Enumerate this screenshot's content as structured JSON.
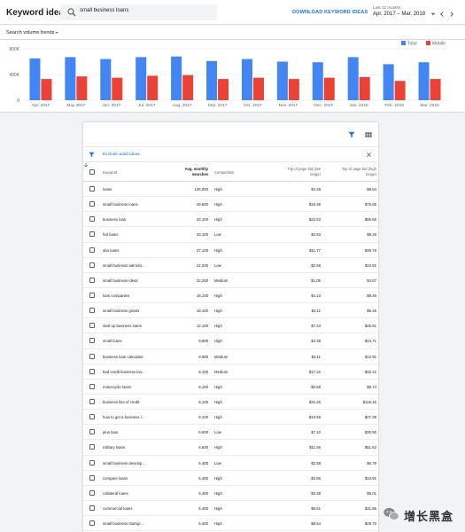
{
  "app": {
    "title": "Keyword ideas"
  },
  "search": {
    "value": "small business loans",
    "icon": "search-icon"
  },
  "header": {
    "download_label": "DOWNLOAD KEYWORD IDEAS",
    "date_caption": "Last 12 months",
    "date_range": "Apr. 2017 – Mar. 2018"
  },
  "trends": {
    "selector_label": "Search volume trends"
  },
  "chart_data": {
    "type": "bar",
    "categories": [
      "Apr. 2017",
      "May 2017",
      "Jun. 2017",
      "Jul. 2017",
      "Aug. 2017",
      "Sep. 2017",
      "Oct. 2017",
      "Nov. 2017",
      "Dec. 2017",
      "Jan. 2018",
      "Feb. 2018",
      "Mar. 2018"
    ],
    "series": [
      {
        "name": "Total",
        "color": "#4285f4",
        "values": [
          650000,
          670000,
          640000,
          670000,
          680000,
          610000,
          640000,
          600000,
          590000,
          670000,
          560000,
          590000
        ]
      },
      {
        "name": "Mobile",
        "color": "#ea4335",
        "values": [
          330000,
          370000,
          350000,
          380000,
          390000,
          330000,
          350000,
          330000,
          350000,
          360000,
          300000,
          330000
        ]
      }
    ],
    "yticks": [
      "0",
      "400K",
      "800K"
    ],
    "ylim": [
      0,
      800000
    ],
    "grid": true,
    "legend": "top-right"
  },
  "toolbar": {
    "filter_icon": "filter-icon",
    "columns_icon": "columns-icon"
  },
  "filter": {
    "chip_label": "Exclude adult ideas"
  },
  "table": {
    "columns": {
      "keyword": "Keyword",
      "volume_line1": "Avg. monthly",
      "volume_line2": "searches",
      "competition": "Competition",
      "bid_low_line1": "Top of page bid (low",
      "bid_low_line2": "range)",
      "bid_high_line1": "Top of page bid (high",
      "bid_high_line2": "range)"
    },
    "rows": [
      {
        "keyword": "loans",
        "volume": "135,000",
        "competition": "High",
        "bid_low": "$4.28",
        "bid_high": "$8.54"
      },
      {
        "keyword": "small business loans",
        "volume": "49,500",
        "competition": "High",
        "bid_low": "$19.36",
        "bid_high": "$75.65"
      },
      {
        "keyword": "business loan",
        "volume": "33,100",
        "competition": "High",
        "bid_low": "$22.53",
        "bid_high": "$80.68"
      },
      {
        "keyword": "fed loans",
        "volume": "33,100",
        "competition": "Low",
        "bid_low": "$2.83",
        "bid_high": "$9.28"
      },
      {
        "keyword": "sba loans",
        "volume": "27,100",
        "competition": "High",
        "bid_low": "$11.77",
        "bid_high": "$35.78"
      },
      {
        "keyword": "small business adminis...",
        "volume": "22,200",
        "competition": "Low",
        "bid_low": "$2.58",
        "bid_high": "$10.91"
      },
      {
        "keyword": "small business ideas",
        "volume": "22,200",
        "competition": "Medium",
        "bid_low": "$1.05",
        "bid_high": "$4.87"
      },
      {
        "keyword": "loan companies",
        "volume": "18,100",
        "competition": "High",
        "bid_low": "$4.10",
        "bid_high": "$9.49"
      },
      {
        "keyword": "small business grants",
        "volume": "18,100",
        "competition": "High",
        "bid_low": "$3.11",
        "bid_high": "$6.45"
      },
      {
        "keyword": "start up business loans",
        "volume": "12,100",
        "competition": "High",
        "bid_low": "$7.43",
        "bid_high": "$25.81"
      },
      {
        "keyword": "small loans",
        "volume": "9,900",
        "competition": "High",
        "bid_low": "$4.38",
        "bid_high": "$10.71"
      },
      {
        "keyword": "business loan calculator",
        "volume": "9,900",
        "competition": "Medium",
        "bid_low": "$3.11",
        "bid_high": "$12.91"
      },
      {
        "keyword": "bad credit business loa...",
        "volume": "8,100",
        "competition": "Medium",
        "bid_low": "$17.22",
        "bid_high": "$32.42"
      },
      {
        "keyword": "motorcycle loans",
        "volume": "8,100",
        "competition": "High",
        "bid_low": "$2.58",
        "bid_high": "$8.74"
      },
      {
        "keyword": "business line of credit",
        "volume": "8,100",
        "competition": "High",
        "bid_low": "$32.26",
        "bid_high": "$116.15"
      },
      {
        "keyword": "how to get a business l...",
        "volume": "8,100",
        "competition": "High",
        "bid_low": "$10.69",
        "bid_high": "$27.39"
      },
      {
        "keyword": "plus loan",
        "volume": "6,600",
        "competition": "Low",
        "bid_low": "$7.10",
        "bid_high": "$30.90"
      },
      {
        "keyword": "military loans",
        "volume": "6,600",
        "competition": "High",
        "bid_low": "$11.56",
        "bid_high": "$51.62"
      },
      {
        "keyword": "small business develop...",
        "volume": "5,400",
        "competition": "Low",
        "bid_low": "$2.58",
        "bid_high": "$6.79"
      },
      {
        "keyword": "compare loans",
        "volume": "5,400",
        "competition": "High",
        "bid_low": "$3.86",
        "bid_high": "$10.91"
      },
      {
        "keyword": "collateral loans",
        "volume": "5,400",
        "competition": "High",
        "bid_low": "$3.39",
        "bid_high": "$9.01"
      },
      {
        "keyword": "commercial loans",
        "volume": "5,400",
        "competition": "High",
        "bid_low": "$8.61",
        "bid_high": "$31.85"
      },
      {
        "keyword": "small business startup ...",
        "volume": "5,400",
        "competition": "High",
        "bid_low": "$8.54",
        "bid_high": "$29.70"
      }
    ]
  },
  "watermark": {
    "text": "增长黑盒",
    "logo": "wechat-logo"
  }
}
